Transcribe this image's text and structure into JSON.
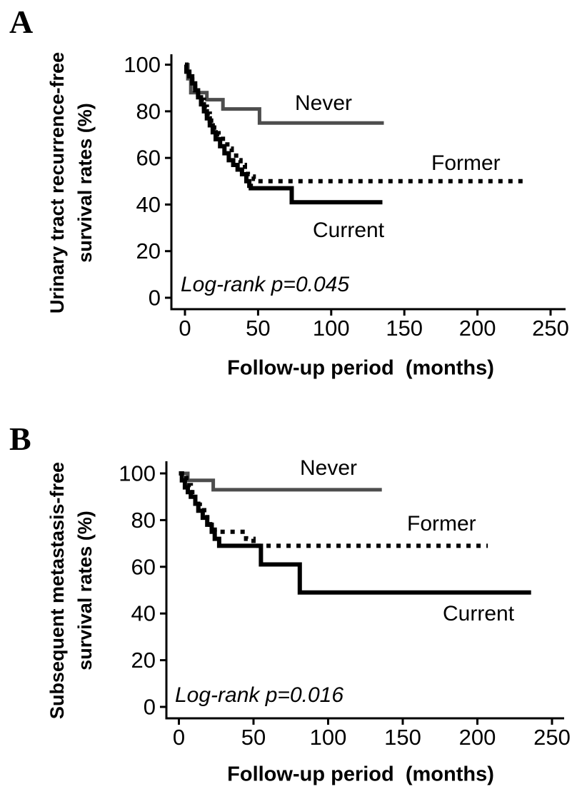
{
  "figure": {
    "panels": [
      {
        "letter": "A",
        "y_axis_title_lines": [
          "Urinary tract recurrence-free",
          "survival rates (%)"
        ],
        "x_axis_title": "Follow-up period  (months)"
      },
      {
        "letter": "B",
        "y_axis_title_lines": [
          "Subsequent metastasis-free",
          "survival rates (%)"
        ],
        "x_axis_title": "Follow-up period  (months)"
      }
    ]
  },
  "chart_data": [
    {
      "type": "line",
      "subtype": "kaplan-meier-step",
      "panel": "A",
      "xlabel": "Follow-up period (months)",
      "ylabel": "Urinary tract recurrence-free survival rates (%)",
      "xlim": [
        0,
        250
      ],
      "ylim": [
        0,
        100
      ],
      "x_ticks": [
        0,
        50,
        100,
        150,
        200,
        250
      ],
      "y_ticks": [
        0,
        20,
        40,
        60,
        80,
        100
      ],
      "grid": false,
      "annotation": "Log-rank p=0.045",
      "series": [
        {
          "name": "Never",
          "style": "solid",
          "color": "#4d4d4d",
          "points": [
            [
              0,
              100
            ],
            [
              2,
              94
            ],
            [
              4,
              88
            ],
            [
              15,
              85
            ],
            [
              26,
              81
            ],
            [
              51,
              75
            ]
          ],
          "end_x": 136
        },
        {
          "name": "Former",
          "style": "dotted",
          "color": "#000000",
          "points": [
            [
              0,
              100
            ],
            [
              1,
              98
            ],
            [
              3,
              96
            ],
            [
              5,
              93
            ],
            [
              7,
              90
            ],
            [
              9,
              87
            ],
            [
              11,
              85
            ],
            [
              13,
              82
            ],
            [
              15,
              79
            ],
            [
              17,
              76
            ],
            [
              20,
              73
            ],
            [
              23,
              70
            ],
            [
              26,
              67
            ],
            [
              29,
              64
            ],
            [
              32,
              61
            ],
            [
              35,
              59
            ],
            [
              38,
              57
            ],
            [
              41,
              55
            ],
            [
              43,
              53
            ],
            [
              45,
              52
            ],
            [
              47,
              51
            ],
            [
              48,
              50
            ]
          ],
          "end_x": 232
        },
        {
          "name": "Current",
          "style": "solid",
          "color": "#000000",
          "points": [
            [
              0,
              100
            ],
            [
              1,
              97
            ],
            [
              3,
              95
            ],
            [
              5,
              92
            ],
            [
              7,
              89
            ],
            [
              9,
              86
            ],
            [
              11,
              83
            ],
            [
              13,
              80
            ],
            [
              15,
              77
            ],
            [
              17,
              74
            ],
            [
              19,
              71
            ],
            [
              21,
              68
            ],
            [
              24,
              65
            ],
            [
              27,
              62
            ],
            [
              30,
              59
            ],
            [
              33,
              57
            ],
            [
              36,
              55
            ],
            [
              39,
              53
            ],
            [
              42,
              50
            ],
            [
              44,
              48
            ],
            [
              45,
              47
            ],
            [
              73,
              41
            ]
          ],
          "end_x": 135
        }
      ]
    },
    {
      "type": "line",
      "subtype": "kaplan-meier-step",
      "panel": "B",
      "xlabel": "Follow-up period (months)",
      "ylabel": "Subsequent metastasis-free survival rates (%)",
      "xlim": [
        0,
        250
      ],
      "ylim": [
        0,
        100
      ],
      "x_ticks": [
        0,
        50,
        100,
        150,
        200,
        250
      ],
      "y_ticks": [
        0,
        20,
        40,
        60,
        80,
        100
      ],
      "grid": false,
      "annotation": "Log-rank p=0.016",
      "series": [
        {
          "name": "Never",
          "style": "solid",
          "color": "#4d4d4d",
          "points": [
            [
              0,
              100
            ],
            [
              6,
              97
            ],
            [
              23,
              93
            ]
          ],
          "end_x": 136
        },
        {
          "name": "Former",
          "style": "dotted",
          "color": "#000000",
          "points": [
            [
              0,
              100
            ],
            [
              2,
              98
            ],
            [
              5,
              95
            ],
            [
              8,
              92
            ],
            [
              11,
              89
            ],
            [
              14,
              86
            ],
            [
              17,
              83
            ],
            [
              19,
              80
            ],
            [
              21,
              78
            ],
            [
              24,
              75
            ],
            [
              45,
              72
            ],
            [
              50,
              69
            ]
          ],
          "end_x": 207
        },
        {
          "name": "Current",
          "style": "solid",
          "color": "#000000",
          "points": [
            [
              0,
              100
            ],
            [
              2,
              97
            ],
            [
              4,
              94
            ],
            [
              6,
              92
            ],
            [
              8,
              90
            ],
            [
              11,
              87
            ],
            [
              13,
              84
            ],
            [
              16,
              81
            ],
            [
              19,
              78
            ],
            [
              22,
              75
            ],
            [
              24,
              72
            ],
            [
              27,
              69
            ],
            [
              55,
              61
            ],
            [
              81,
              49
            ]
          ],
          "end_x": 236
        }
      ]
    }
  ]
}
